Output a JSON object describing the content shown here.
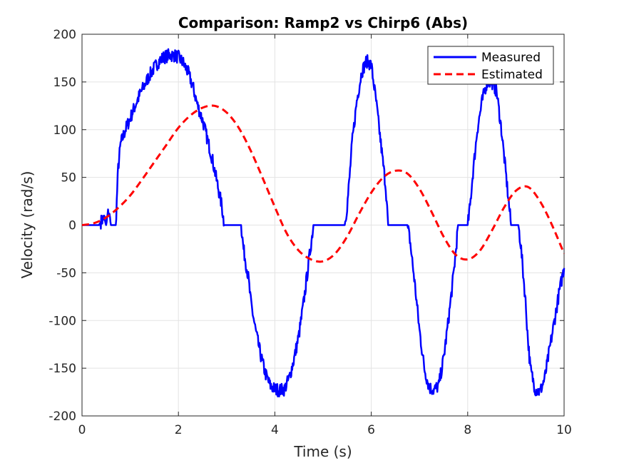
{
  "chart_data": {
    "type": "line",
    "title": "Comparison: Ramp2 vs Chirp6 (Abs)",
    "xlabel": "Time (s)",
    "ylabel": "Velocity (rad/s)",
    "xlim": [
      0,
      10
    ],
    "ylim": [
      -200,
      200
    ],
    "xticks": [
      "0",
      "2",
      "4",
      "6",
      "8",
      "10"
    ],
    "yticks": [
      "200",
      "150",
      "100",
      "50",
      "0",
      "-50",
      "-100",
      "-150",
      "-200"
    ],
    "grid": true,
    "legend_position": "top-right",
    "series": [
      {
        "name": "Measured",
        "color": "#0000ff",
        "style": "solid-noisy",
        "x": [
          0,
          0.35,
          0.45,
          0.5,
          0.55,
          0.6,
          0.7,
          0.75,
          0.8,
          0.9,
          1.0,
          1.1,
          1.2,
          1.3,
          1.4,
          1.5,
          1.6,
          1.7,
          1.8,
          1.9,
          2.0,
          2.1,
          2.2,
          2.3,
          2.4,
          2.5,
          2.6,
          2.7,
          2.8,
          2.9,
          2.95,
          3.0,
          3.3,
          3.35,
          3.45,
          3.5,
          3.6,
          3.7,
          3.8,
          3.9,
          4.0,
          4.1,
          4.2,
          4.3,
          4.4,
          4.5,
          4.6,
          4.7,
          4.8,
          4.9,
          5.0,
          5.05,
          5.45,
          5.5,
          5.55,
          5.6,
          5.7,
          5.8,
          5.9,
          6.0,
          6.1,
          6.2,
          6.3,
          6.35,
          6.4,
          6.75,
          6.8,
          6.9,
          7.0,
          7.1,
          7.2,
          7.3,
          7.4,
          7.5,
          7.6,
          7.7,
          7.75,
          7.8,
          8.0,
          8.05,
          8.1,
          8.2,
          8.3,
          8.4,
          8.5,
          8.6,
          8.7,
          8.8,
          8.9,
          9.0,
          9.05,
          9.1,
          9.2,
          9.25,
          9.3,
          9.4,
          9.5,
          9.6,
          9.7,
          9.8,
          9.9,
          10.0
        ],
        "y": [
          0,
          0,
          8,
          0,
          15,
          0,
          0,
          60,
          85,
          100,
          112,
          125,
          137,
          147,
          157,
          165,
          172,
          176,
          178,
          178,
          176,
          170,
          160,
          145,
          125,
          110,
          90,
          70,
          45,
          20,
          0,
          0,
          0,
          -25,
          -55,
          -80,
          -110,
          -135,
          -155,
          -168,
          -172,
          -173,
          -172,
          -160,
          -140,
          -115,
          -80,
          -40,
          0,
          0,
          0,
          0,
          0,
          20,
          50,
          85,
          130,
          160,
          172,
          168,
          130,
          85,
          40,
          0,
          0,
          0,
          -15,
          -60,
          -110,
          -150,
          -170,
          -173,
          -168,
          -140,
          -100,
          -55,
          -30,
          0,
          0,
          20,
          50,
          100,
          130,
          150,
          150,
          140,
          100,
          50,
          0,
          0,
          0,
          -20,
          -80,
          -120,
          -150,
          -172,
          -175,
          -160,
          -130,
          -100,
          -70,
          -45
        ]
      },
      {
        "name": "Estimated",
        "color": "#ff0000",
        "style": "dashed",
        "x": [
          0,
          0.25,
          0.5,
          0.75,
          1.0,
          1.25,
          1.5,
          1.75,
          2.0,
          2.25,
          2.5,
          2.75,
          3.0,
          3.25,
          3.5,
          3.75,
          4.0,
          4.25,
          4.5,
          4.75,
          5.0,
          5.25,
          5.5,
          5.75,
          6.0,
          6.25,
          6.5,
          6.75,
          7.0,
          7.25,
          7.5,
          7.75,
          8.0,
          8.25,
          8.5,
          8.75,
          9.0,
          9.25,
          9.5,
          9.75,
          10.0
        ],
        "y": [
          0,
          2,
          8,
          18,
          31,
          48,
          66,
          84,
          102,
          115,
          123,
          125,
          118,
          102,
          78,
          49,
          19,
          -9,
          -27,
          -36,
          -38,
          -30,
          -12,
          12,
          34,
          50,
          57,
          54,
          38,
          14,
          -12,
          -31,
          -36,
          -27,
          -6,
          18,
          36,
          40,
          25,
          0,
          -30
        ]
      }
    ]
  }
}
